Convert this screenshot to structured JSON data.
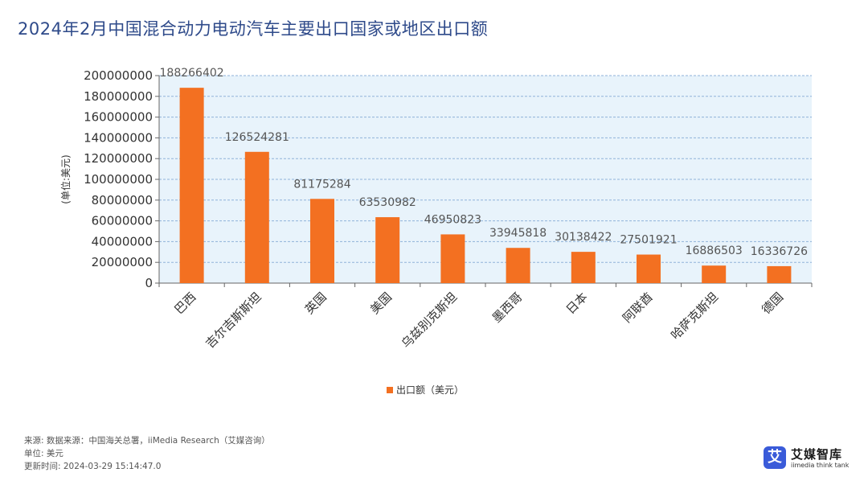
{
  "title": "2024年2月中国混合动力电动汽车主要出口国家或地区出口额",
  "chart_data": {
    "type": "bar",
    "categories": [
      "巴西",
      "吉尔吉斯斯坦",
      "英国",
      "美国",
      "乌兹别克斯坦",
      "墨西哥",
      "日本",
      "阿联酋",
      "哈萨克斯坦",
      "德国"
    ],
    "series": [
      {
        "name": "出口额（美元）",
        "values": [
          188266402,
          126524281,
          81175284,
          63530982,
          46950823,
          33945818,
          30138422,
          27501921,
          16886503,
          16336726
        ]
      }
    ],
    "data_labels": [
      "188266402",
      "126524281",
      "81175284",
      "63530982",
      "46950823",
      "33945818",
      "30138422",
      "27501921",
      "16886503",
      "16336726"
    ],
    "ylabel": "(单位:美元)",
    "xlabel": "",
    "ylim": [
      0,
      200000000
    ],
    "y_ticks": [
      0,
      20000000,
      40000000,
      60000000,
      80000000,
      100000000,
      120000000,
      140000000,
      160000000,
      180000000,
      200000000
    ],
    "y_tick_labels": [
      "0",
      "20000000",
      "40000000",
      "60000000",
      "80000000",
      "100000000",
      "120000000",
      "140000000",
      "160000000",
      "180000000",
      "200000000"
    ],
    "grid": true,
    "legend_position": "bottom",
    "colors": {
      "bar": "#f37021",
      "plot_background": "#e8f3fb",
      "grid": "#8fb3d9",
      "title": "#2e4a8a"
    }
  },
  "footer": {
    "source": "来源: 数据来源：中国海关总署，iiMedia Research（艾媒咨询）",
    "unit": "单位: 美元",
    "updated": "更新时间: 2024-03-29 15:14:47.0"
  },
  "brand": {
    "logo_char": "艾",
    "name": "艾媒智库",
    "sub": "iimedia think tank"
  }
}
